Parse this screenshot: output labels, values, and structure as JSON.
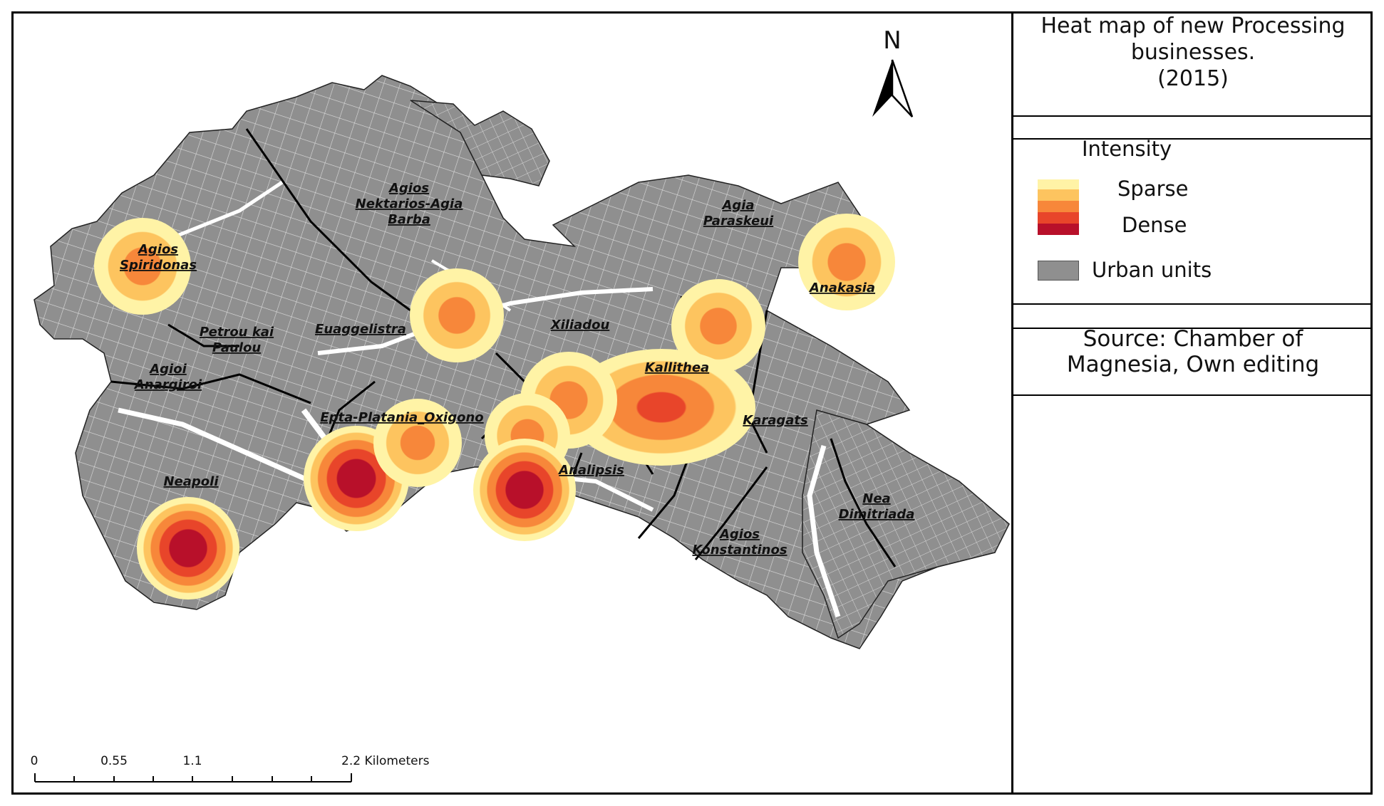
{
  "title": {
    "line1": "Heat map of new Processing",
    "line2": "businesses.",
    "line3": "(2015)"
  },
  "legend": {
    "heading": "Intensity",
    "sparse_label": "Sparse",
    "dense_label": "Dense",
    "urban_label": "Urban units",
    "ramp_colors": [
      "#fff3a6",
      "#fdc45f",
      "#f7873a",
      "#e8452a",
      "#b8102a"
    ],
    "urban_color": "#8f8f8f"
  },
  "source": {
    "line1": "Source: Chamber of",
    "line2": "Magnesia, Own editing"
  },
  "north_arrow": {
    "letter": "N"
  },
  "scale_bar": {
    "ticks": [
      "0",
      "0.55",
      "1.1",
      "2.2 Kilometers"
    ]
  },
  "districts": [
    "Agios",
    "Nektarios-Agia",
    "Barba",
    "Agia",
    "Paraskeui",
    "Agios",
    "Spiridonas",
    "Anakasia",
    "Euaggelistra",
    "Xiliadou",
    "Petrou kai",
    "Paulou",
    "Agioi",
    "Anargiroi",
    "Kallithea",
    "Epta-Platania_Oxigono",
    "Karagats",
    "Analipsis",
    "Neapoli",
    "Nea",
    "Dimitriada",
    "Agios",
    "Konstantinos"
  ],
  "hotspots": [
    {
      "name": "Agios Spiridonas",
      "level": 3
    },
    {
      "name": "Euaggelistra",
      "level": 3
    },
    {
      "name": "Anakasia",
      "level": 3
    },
    {
      "name": "Xiliadou-Kallithea",
      "level": 3
    },
    {
      "name": "Kallithea",
      "level": 4
    },
    {
      "name": "Epta-Platania",
      "level": 5
    },
    {
      "name": "Oxigono",
      "level": 3
    },
    {
      "name": "Analipsis",
      "level": 5
    },
    {
      "name": "Neapoli",
      "level": 5
    }
  ]
}
